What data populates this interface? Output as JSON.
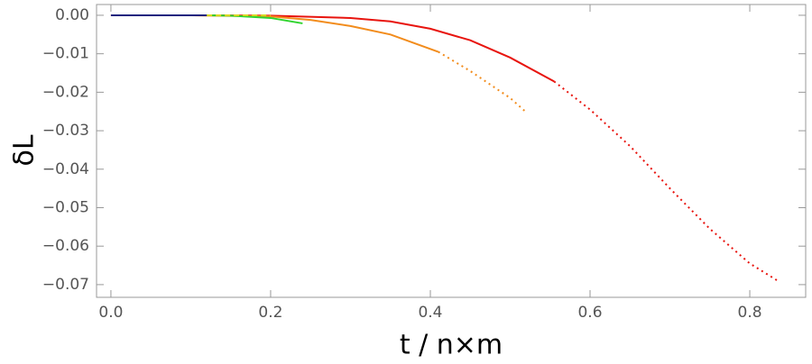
{
  "chart_data": {
    "type": "line",
    "x_label": "t / n×m",
    "y_label": "δL",
    "xlim": [
      -0.018,
      0.87
    ],
    "ylim": [
      -0.0733,
      0.0028
    ],
    "xticks": [
      {
        "value": 0,
        "label": "0.0"
      },
      0.2,
      0.4,
      0.6,
      0.8
    ],
    "yticks": [
      {
        "value": 0,
        "label": "0.00"
      },
      {
        "value": -0.01,
        "label": "−0.01"
      },
      {
        "value": -0.02,
        "label": "−0.02"
      },
      {
        "value": -0.03,
        "label": "−0.03"
      },
      {
        "value": -0.04,
        "label": "−0.04"
      },
      {
        "value": -0.05,
        "label": "−0.05"
      },
      {
        "value": -0.06,
        "label": "−0.06"
      },
      {
        "value": -0.07,
        "label": "−0.07"
      }
    ],
    "series": [
      {
        "color": "#e8140e",
        "style": "dotted",
        "x": [
          0.555,
          0.6,
          0.65,
          0.7,
          0.75,
          0.8,
          0.835
        ],
        "values": [
          -0.0172,
          -0.0245,
          -0.034,
          -0.045,
          -0.0555,
          -0.0645,
          -0.069
        ]
      },
      {
        "color": "#e8140e",
        "style": "solid",
        "x": [
          0,
          0.1,
          0.2,
          0.3,
          0.35,
          0.4,
          0.45,
          0.5,
          0.555
        ],
        "values": [
          0,
          0,
          -0.0001,
          -0.0007,
          -0.0016,
          -0.0035,
          -0.0065,
          -0.011,
          -0.0172
        ]
      },
      {
        "color": "#f28c1c",
        "style": "dotted",
        "x": [
          0.41,
          0.45,
          0.5,
          0.52
        ],
        "values": [
          -0.0095,
          -0.0145,
          -0.0215,
          -0.0252
        ]
      },
      {
        "color": "#f28c1c",
        "style": "solid",
        "x": [
          0,
          0.1,
          0.2,
          0.25,
          0.3,
          0.35,
          0.41
        ],
        "values": [
          0,
          0,
          -0.0003,
          -0.0012,
          -0.0028,
          -0.005,
          -0.0095
        ]
      },
      {
        "color": "#2ed42e",
        "style": "solid",
        "x": [
          0.12,
          0.15,
          0.2,
          0.24
        ],
        "values": [
          0,
          -0.0001,
          -0.0007,
          -0.0021
        ]
      },
      {
        "color": "#d8d820",
        "style": "dashed",
        "x": [
          0.12,
          0.2
        ],
        "values": [
          0,
          0
        ]
      },
      {
        "color": "#1a237e",
        "style": "solid",
        "x": [
          0,
          0.12
        ],
        "values": [
          0,
          0
        ]
      }
    ]
  }
}
